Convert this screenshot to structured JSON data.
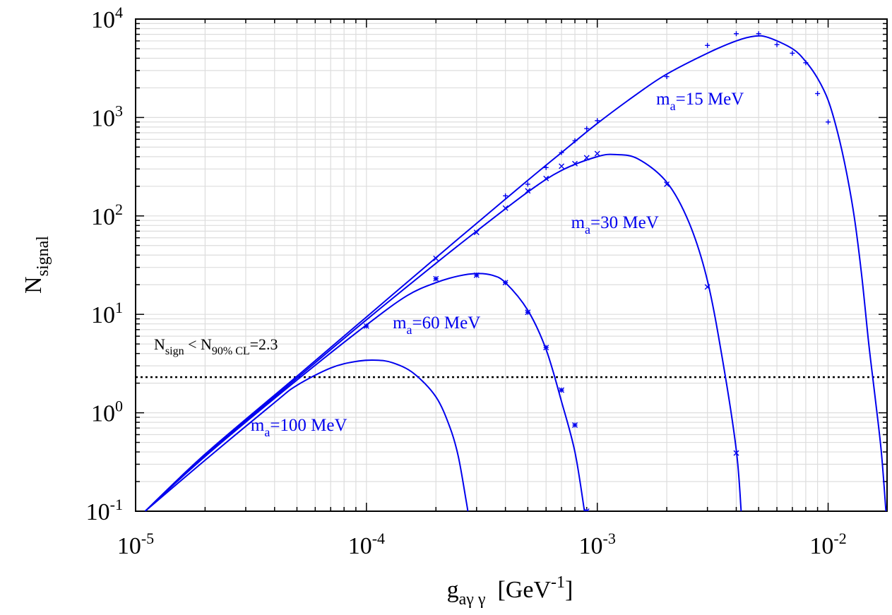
{
  "chart_data": {
    "type": "line",
    "xscale": "log",
    "yscale": "log",
    "xlim": [
      1e-05,
      0.018
    ],
    "ylim": [
      0.1,
      10000
    ],
    "grid": true,
    "x_ticks": [
      {
        "value": 1e-05,
        "base": "10",
        "exp": "-5"
      },
      {
        "value": 0.0001,
        "base": "10",
        "exp": "-4"
      },
      {
        "value": 0.001,
        "base": "10",
        "exp": "-3"
      },
      {
        "value": 0.01,
        "base": "10",
        "exp": "-2"
      }
    ],
    "y_ticks": [
      {
        "value": 0.1,
        "base": "10",
        "exp": "-1"
      },
      {
        "value": 1,
        "base": "10",
        "exp": "0"
      },
      {
        "value": 10,
        "base": "10",
        "exp": "1"
      },
      {
        "value": 100,
        "base": "10",
        "exp": "2"
      },
      {
        "value": 1000,
        "base": "10",
        "exp": "3"
      },
      {
        "value": 10000,
        "base": "10",
        "exp": "4"
      }
    ],
    "xlabel": {
      "main": "g",
      "sub": "aγ γ",
      "unit_open": "  [GeV",
      "unit_exp": "-1",
      "unit_close": "]"
    },
    "ylabel": {
      "main": "N",
      "sub": "signal"
    },
    "threshold": {
      "value": 2.3,
      "label": {
        "main": "N",
        "sub1": "sign",
        "mid": " < N",
        "sub2": "90% CL",
        "tail": "=2.3"
      }
    },
    "color": "#0000ee",
    "series": [
      {
        "name": "m_a=15 MeV",
        "label": {
          "main": "m",
          "sub": "a",
          "tail": "=15 MeV"
        },
        "label_anchor": [
          0.0018,
          1350
        ],
        "marker": "+",
        "curve": [
          [
            1.1e-05,
            0.1
          ],
          [
            2e-05,
            0.38
          ],
          [
            5e-05,
            2.35
          ],
          [
            0.0001,
            9.4
          ],
          [
            0.0002,
            37.6
          ],
          [
            0.0003,
            84
          ],
          [
            0.0005,
            230
          ],
          [
            0.0007,
            440
          ],
          [
            0.001,
            870
          ],
          [
            0.0015,
            1760
          ],
          [
            0.002,
            2760
          ],
          [
            0.003,
            4500
          ],
          [
            0.004,
            6000
          ],
          [
            0.0048,
            6700
          ],
          [
            0.0055,
            6500
          ],
          [
            0.007,
            5000
          ],
          [
            0.008,
            3700
          ],
          [
            0.009,
            2500
          ],
          [
            0.01,
            1500
          ],
          [
            0.011,
            700
          ],
          [
            0.012,
            280
          ],
          [
            0.013,
            95
          ],
          [
            0.014,
            24
          ],
          [
            0.015,
            5
          ],
          [
            0.016,
            1.4
          ],
          [
            0.017,
            0.4
          ],
          [
            0.0178,
            0.1
          ]
        ],
        "points": [
          [
            0.0004,
            160
          ],
          [
            0.0005,
            210
          ],
          [
            0.0006,
            310
          ],
          [
            0.0007,
            440
          ],
          [
            0.0008,
            580
          ],
          [
            0.0009,
            770
          ],
          [
            0.001,
            930
          ],
          [
            0.002,
            2600
          ],
          [
            0.003,
            5400
          ],
          [
            0.004,
            7100
          ],
          [
            0.005,
            7100
          ],
          [
            0.006,
            5500
          ],
          [
            0.007,
            4500
          ],
          [
            0.008,
            3600
          ],
          [
            0.009,
            1750
          ],
          [
            0.01,
            900
          ]
        ]
      },
      {
        "name": "m_a=30 MeV",
        "label": {
          "main": "m",
          "sub": "a",
          "tail": "=30 MeV"
        },
        "label_anchor": [
          0.00077,
          75
        ],
        "marker": "x",
        "curve": [
          [
            1.1e-05,
            0.1
          ],
          [
            2e-05,
            0.37
          ],
          [
            5e-05,
            2.25
          ],
          [
            0.0001,
            8.8
          ],
          [
            0.0002,
            33
          ],
          [
            0.0003,
            70
          ],
          [
            0.0005,
            175
          ],
          [
            0.0007,
            290
          ],
          [
            0.001,
            400
          ],
          [
            0.0012,
            420
          ],
          [
            0.0015,
            380
          ],
          [
            0.002,
            220
          ],
          [
            0.0025,
            85
          ],
          [
            0.003,
            22
          ],
          [
            0.0035,
            3.3
          ],
          [
            0.004,
            0.42
          ],
          [
            0.0042,
            0.1
          ]
        ],
        "points": [
          [
            0.0002,
            37
          ],
          [
            0.0003,
            68
          ],
          [
            0.0004,
            120
          ],
          [
            0.0005,
            180
          ],
          [
            0.0006,
            240
          ],
          [
            0.0007,
            320
          ],
          [
            0.0008,
            340
          ],
          [
            0.0009,
            390
          ],
          [
            0.001,
            430
          ],
          [
            0.002,
            210
          ],
          [
            0.003,
            19
          ],
          [
            0.004,
            0.39
          ]
        ]
      },
      {
        "name": "m_a=60 MeV",
        "label": {
          "main": "m",
          "sub": "a",
          "tail": "=60 MeV"
        },
        "label_anchor": [
          0.00013,
          7.2
        ],
        "marker": "*",
        "curve": [
          [
            1.1e-05,
            0.1
          ],
          [
            2e-05,
            0.36
          ],
          [
            5e-05,
            2.15
          ],
          [
            0.0001,
            7.8
          ],
          [
            0.00015,
            15.5
          ],
          [
            0.0002,
            21
          ],
          [
            0.00025,
            24.5
          ],
          [
            0.0003,
            26
          ],
          [
            0.00035,
            25
          ],
          [
            0.0004,
            21
          ],
          [
            0.0005,
            11
          ],
          [
            0.0006,
            4.4
          ],
          [
            0.0007,
            1.3
          ],
          [
            0.0008,
            0.4
          ],
          [
            0.00088,
            0.1
          ]
        ],
        "points": [
          [
            0.0001,
            7.6
          ],
          [
            0.0002,
            23
          ],
          [
            0.0003,
            25
          ],
          [
            0.0004,
            21
          ],
          [
            0.0005,
            10.5
          ],
          [
            0.0006,
            4.6
          ],
          [
            0.0007,
            1.7
          ],
          [
            0.0008,
            0.75
          ],
          [
            0.0009,
            0.1
          ]
        ]
      },
      {
        "name": "m_a=100 MeV",
        "label": {
          "main": "m",
          "sub": "a",
          "tail": "=100 MeV"
        },
        "label_anchor": [
          3.15e-05,
          0.66
        ],
        "marker": "",
        "curve": [
          [
            1.1e-05,
            0.1
          ],
          [
            2e-05,
            0.33
          ],
          [
            4e-05,
            1.27
          ],
          [
            5e-05,
            1.9
          ],
          [
            7e-05,
            2.85
          ],
          [
            9e-05,
            3.32
          ],
          [
            0.00011,
            3.42
          ],
          [
            0.00013,
            3.22
          ],
          [
            0.00016,
            2.52
          ],
          [
            0.0002,
            1.45
          ],
          [
            0.00023,
            0.71
          ],
          [
            0.00025,
            0.36
          ],
          [
            0.00027,
            0.13
          ],
          [
            0.000275,
            0.1
          ]
        ],
        "points": []
      }
    ]
  }
}
